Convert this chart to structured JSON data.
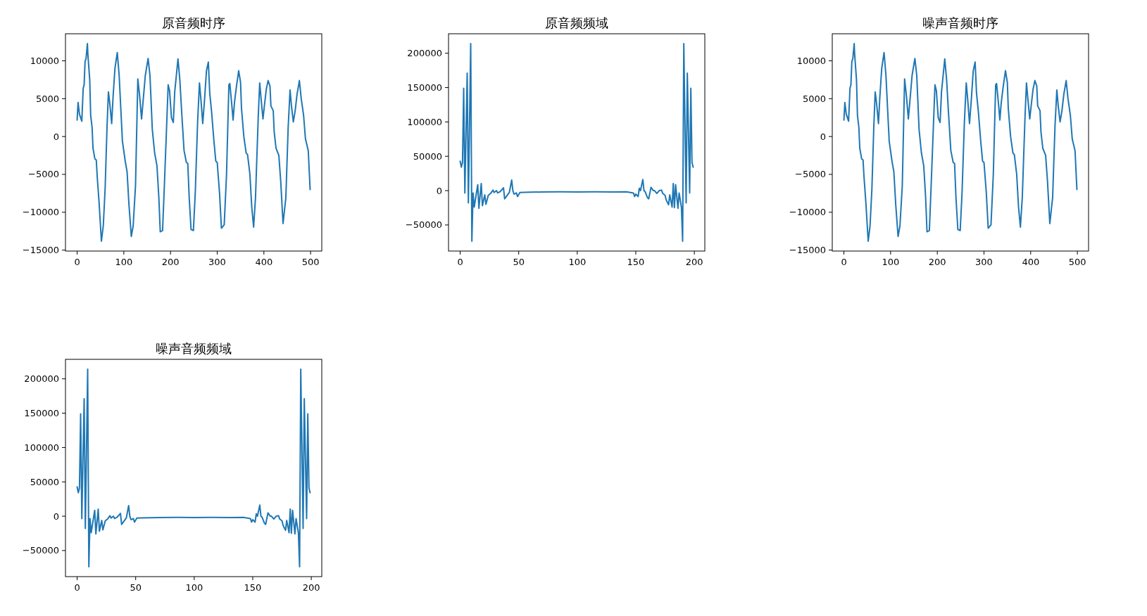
{
  "chart_data": [
    {
      "type": "line",
      "title": "原音频时序",
      "xlim": [
        -24.95,
        523.95
      ],
      "ylim": [
        -15124,
        13574
      ],
      "xticks": [
        0,
        100,
        200,
        300,
        400,
        500
      ],
      "yticks": [
        -15000,
        -10000,
        -5000,
        0,
        5000,
        10000
      ],
      "series": [
        {
          "color": "#1f77b4",
          "x": [
            0,
            2,
            5,
            10,
            13,
            15,
            17,
            19,
            22,
            23,
            27,
            29,
            32,
            34,
            38,
            41,
            43,
            47,
            52,
            56,
            60,
            64,
            67,
            70,
            74,
            77,
            81,
            86,
            90,
            94,
            97,
            103,
            107,
            111,
            116,
            120,
            125,
            130,
            134,
            138,
            143,
            146,
            152,
            156,
            161,
            166,
            171,
            175,
            178,
            183,
            187,
            195,
            198,
            202,
            206,
            209,
            216,
            220,
            224,
            229,
            234,
            237,
            240,
            244,
            249,
            253,
            258,
            262,
            265,
            269,
            273,
            277,
            281,
            284,
            288,
            293,
            297,
            300,
            305,
            309,
            315,
            320,
            325,
            327,
            331,
            334,
            337,
            341,
            346,
            350,
            352,
            357,
            362,
            365,
            370,
            374,
            378,
            382,
            388,
            391,
            394,
            398,
            401,
            405,
            409,
            413,
            415,
            420,
            422,
            426,
            432,
            436,
            441,
            447,
            452,
            456,
            459,
            463,
            467,
            471,
            476,
            480,
            485,
            489,
            495,
            499
          ],
          "values": [
            2170,
            4500,
            2950,
            2020,
            6370,
            6830,
            9940,
            10250,
            12270,
            10870,
            7450,
            2800,
            1240,
            -1550,
            -2950,
            -3100,
            -5280,
            -8700,
            -13820,
            -11800,
            -6830,
            1240,
            5900,
            4350,
            1710,
            5280,
            9000,
            11090,
            8070,
            3100,
            -620,
            -3260,
            -4660,
            -9000,
            -13200,
            -11800,
            -6520,
            7600,
            5280,
            2330,
            5900,
            8070,
            10310,
            8070,
            930,
            -2170,
            -3880,
            -8070,
            -12580,
            -12420,
            -6210,
            6830,
            6060,
            2480,
            1860,
            5900,
            10250,
            7450,
            3100,
            -1860,
            -3420,
            -3570,
            -8070,
            -12270,
            -12420,
            -7450,
            1860,
            7080,
            4970,
            1710,
            4970,
            8690,
            9840,
            5740,
            3260,
            -620,
            -3260,
            -3420,
            -7450,
            -12110,
            -11650,
            -4970,
            6830,
            6990,
            4350,
            2170,
            4500,
            6520,
            8690,
            7140,
            3730,
            0,
            -2170,
            -2390,
            -4970,
            -9320,
            -11960,
            -8070,
            2800,
            7080,
            4970,
            2330,
            4040,
            6210,
            7390,
            6680,
            4040,
            3420,
            620,
            -1550,
            -2480,
            -5900,
            -11490,
            -8070,
            1240,
            6150,
            4040,
            1930,
            3420,
            5590,
            7390,
            4970,
            2800,
            -310,
            -1860,
            -6990
          ]
        }
      ]
    },
    {
      "type": "line",
      "title": "原音频频域",
      "xlim": [
        -9.95,
        208.95
      ],
      "ylim": [
        -87980,
        228380
      ],
      "xticks": [
        0,
        50,
        100,
        150,
        200
      ],
      "yticks": [
        -50000,
        0,
        50000,
        100000,
        150000,
        200000
      ],
      "series": [
        {
          "color": "#1f77b4",
          "x": [
            0,
            1,
            2,
            3,
            4,
            6,
            7,
            9,
            10,
            11,
            12,
            15,
            16,
            18,
            19,
            21,
            22,
            24,
            26,
            28,
            29,
            31,
            32,
            34,
            37,
            38,
            39,
            42,
            44,
            45,
            46,
            48,
            49,
            51,
            55,
            70,
            85,
            100,
            115,
            130,
            142,
            148,
            149,
            150,
            152,
            153,
            154,
            156,
            157,
            158,
            160,
            161,
            163,
            165,
            166,
            168,
            170,
            172,
            173,
            175,
            176,
            178,
            179,
            181,
            182,
            183,
            184,
            186,
            187,
            189,
            190,
            191,
            193,
            194,
            196,
            197,
            198,
            199
          ],
          "values": [
            42800,
            34200,
            41100,
            149000,
            -3400,
            171000,
            -17800,
            214000,
            -73600,
            -3400,
            -24000,
            8600,
            -25700,
            10300,
            -22000,
            -6200,
            -20000,
            -6800,
            -4100,
            700,
            -2700,
            0,
            -3400,
            -1700,
            4100,
            -12000,
            -9600,
            -2700,
            15400,
            0,
            -5100,
            -3400,
            -8600,
            -2700,
            -2400,
            -2000,
            -1800,
            -2000,
            -1800,
            -2000,
            -1700,
            -3400,
            -8600,
            -5100,
            -8600,
            3400,
            0,
            16100,
            0,
            -1700,
            -10300,
            -12000,
            4800,
            0,
            0,
            -4100,
            0,
            700,
            -4100,
            -6800,
            -13700,
            -20500,
            -6200,
            -24000,
            10300,
            -24700,
            8600,
            -25700,
            -3400,
            -24700,
            -73600,
            214000,
            -17800,
            171000,
            -3400,
            149000,
            41100,
            34200
          ]
        }
      ]
    },
    {
      "type": "line",
      "title": "噪声音频时序",
      "xlim": [
        -24.95,
        523.95
      ],
      "ylim": [
        -15124,
        13574
      ],
      "xticks": [
        0,
        100,
        200,
        300,
        400,
        500
      ],
      "yticks": [
        -15000,
        -10000,
        -5000,
        0,
        5000,
        10000
      ],
      "series": [
        {
          "color": "#1f77b4",
          "x": [
            0,
            2,
            5,
            10,
            13,
            15,
            17,
            19,
            22,
            23,
            27,
            29,
            32,
            34,
            38,
            41,
            43,
            47,
            52,
            56,
            60,
            64,
            67,
            70,
            74,
            77,
            81,
            86,
            90,
            94,
            97,
            103,
            107,
            111,
            116,
            120,
            125,
            130,
            134,
            138,
            143,
            146,
            152,
            156,
            161,
            166,
            171,
            175,
            178,
            183,
            187,
            195,
            198,
            202,
            206,
            209,
            216,
            220,
            224,
            229,
            234,
            237,
            240,
            244,
            249,
            253,
            258,
            262,
            265,
            269,
            273,
            277,
            281,
            284,
            288,
            293,
            297,
            300,
            305,
            309,
            315,
            320,
            325,
            327,
            331,
            334,
            337,
            341,
            346,
            350,
            352,
            357,
            362,
            365,
            370,
            374,
            378,
            382,
            388,
            391,
            394,
            398,
            401,
            405,
            409,
            413,
            415,
            420,
            422,
            426,
            432,
            436,
            441,
            447,
            452,
            456,
            459,
            463,
            467,
            471,
            476,
            480,
            485,
            489,
            495,
            499
          ],
          "values": [
            2170,
            4500,
            2950,
            2020,
            6370,
            6830,
            9940,
            10250,
            12270,
            10870,
            7450,
            2800,
            1240,
            -1550,
            -2950,
            -3100,
            -5280,
            -8700,
            -13820,
            -11800,
            -6830,
            1240,
            5900,
            4350,
            1710,
            5280,
            9000,
            11090,
            8070,
            3100,
            -620,
            -3260,
            -4660,
            -9000,
            -13200,
            -11800,
            -6520,
            7600,
            5280,
            2330,
            5900,
            8070,
            10310,
            8070,
            930,
            -2170,
            -3880,
            -8070,
            -12580,
            -12420,
            -6210,
            6830,
            6060,
            2480,
            1860,
            5900,
            10250,
            7450,
            3100,
            -1860,
            -3420,
            -3570,
            -8070,
            -12270,
            -12420,
            -7450,
            1860,
            7080,
            4970,
            1710,
            4970,
            8690,
            9840,
            5740,
            3260,
            -620,
            -3260,
            -3420,
            -7450,
            -12110,
            -11650,
            -4970,
            6830,
            6990,
            4350,
            2170,
            4500,
            6520,
            8690,
            7140,
            3730,
            0,
            -2170,
            -2390,
            -4970,
            -9320,
            -11960,
            -8070,
            2800,
            7080,
            4970,
            2330,
            4040,
            6210,
            7390,
            6680,
            4040,
            3420,
            620,
            -1550,
            -2480,
            -5900,
            -11490,
            -8070,
            1240,
            6150,
            4040,
            1930,
            3420,
            5590,
            7390,
            4970,
            2800,
            -310,
            -1860,
            -6990
          ]
        }
      ]
    },
    {
      "type": "line",
      "title": "噪声音频频域",
      "xlim": [
        -9.95,
        208.95
      ],
      "ylim": [
        -87980,
        228380
      ],
      "xticks": [
        0,
        50,
        100,
        150,
        200
      ],
      "yticks": [
        -50000,
        0,
        50000,
        100000,
        150000,
        200000
      ],
      "series": [
        {
          "color": "#1f77b4",
          "x": [
            0,
            1,
            2,
            3,
            4,
            6,
            7,
            9,
            10,
            11,
            12,
            15,
            16,
            18,
            19,
            21,
            22,
            24,
            26,
            28,
            29,
            31,
            32,
            34,
            37,
            38,
            39,
            42,
            44,
            45,
            46,
            48,
            49,
            51,
            55,
            70,
            85,
            100,
            115,
            130,
            142,
            148,
            149,
            150,
            152,
            153,
            154,
            156,
            157,
            158,
            160,
            161,
            163,
            165,
            166,
            168,
            170,
            172,
            173,
            175,
            176,
            178,
            179,
            181,
            182,
            183,
            184,
            186,
            187,
            189,
            190,
            191,
            193,
            194,
            196,
            197,
            198,
            199
          ],
          "values": [
            42800,
            34200,
            41100,
            149000,
            -3400,
            171000,
            -17800,
            214000,
            -73600,
            -3400,
            -24000,
            8600,
            -25700,
            10300,
            -22000,
            -6200,
            -20000,
            -6800,
            -4100,
            700,
            -2700,
            0,
            -3400,
            -1700,
            4100,
            -12000,
            -9600,
            -2700,
            15400,
            0,
            -5100,
            -3400,
            -8600,
            -2700,
            -2400,
            -2000,
            -1800,
            -2000,
            -1800,
            -2000,
            -1700,
            -3400,
            -8600,
            -5100,
            -8600,
            3400,
            0,
            16100,
            0,
            -1700,
            -10300,
            -12000,
            4800,
            0,
            0,
            -4100,
            0,
            700,
            -4100,
            -6800,
            -13700,
            -20500,
            -6200,
            -24000,
            10300,
            -24700,
            8600,
            -25700,
            -3400,
            -24700,
            -73600,
            214000,
            -17800,
            171000,
            -3400,
            149000,
            41100,
            34200
          ]
        }
      ]
    }
  ]
}
